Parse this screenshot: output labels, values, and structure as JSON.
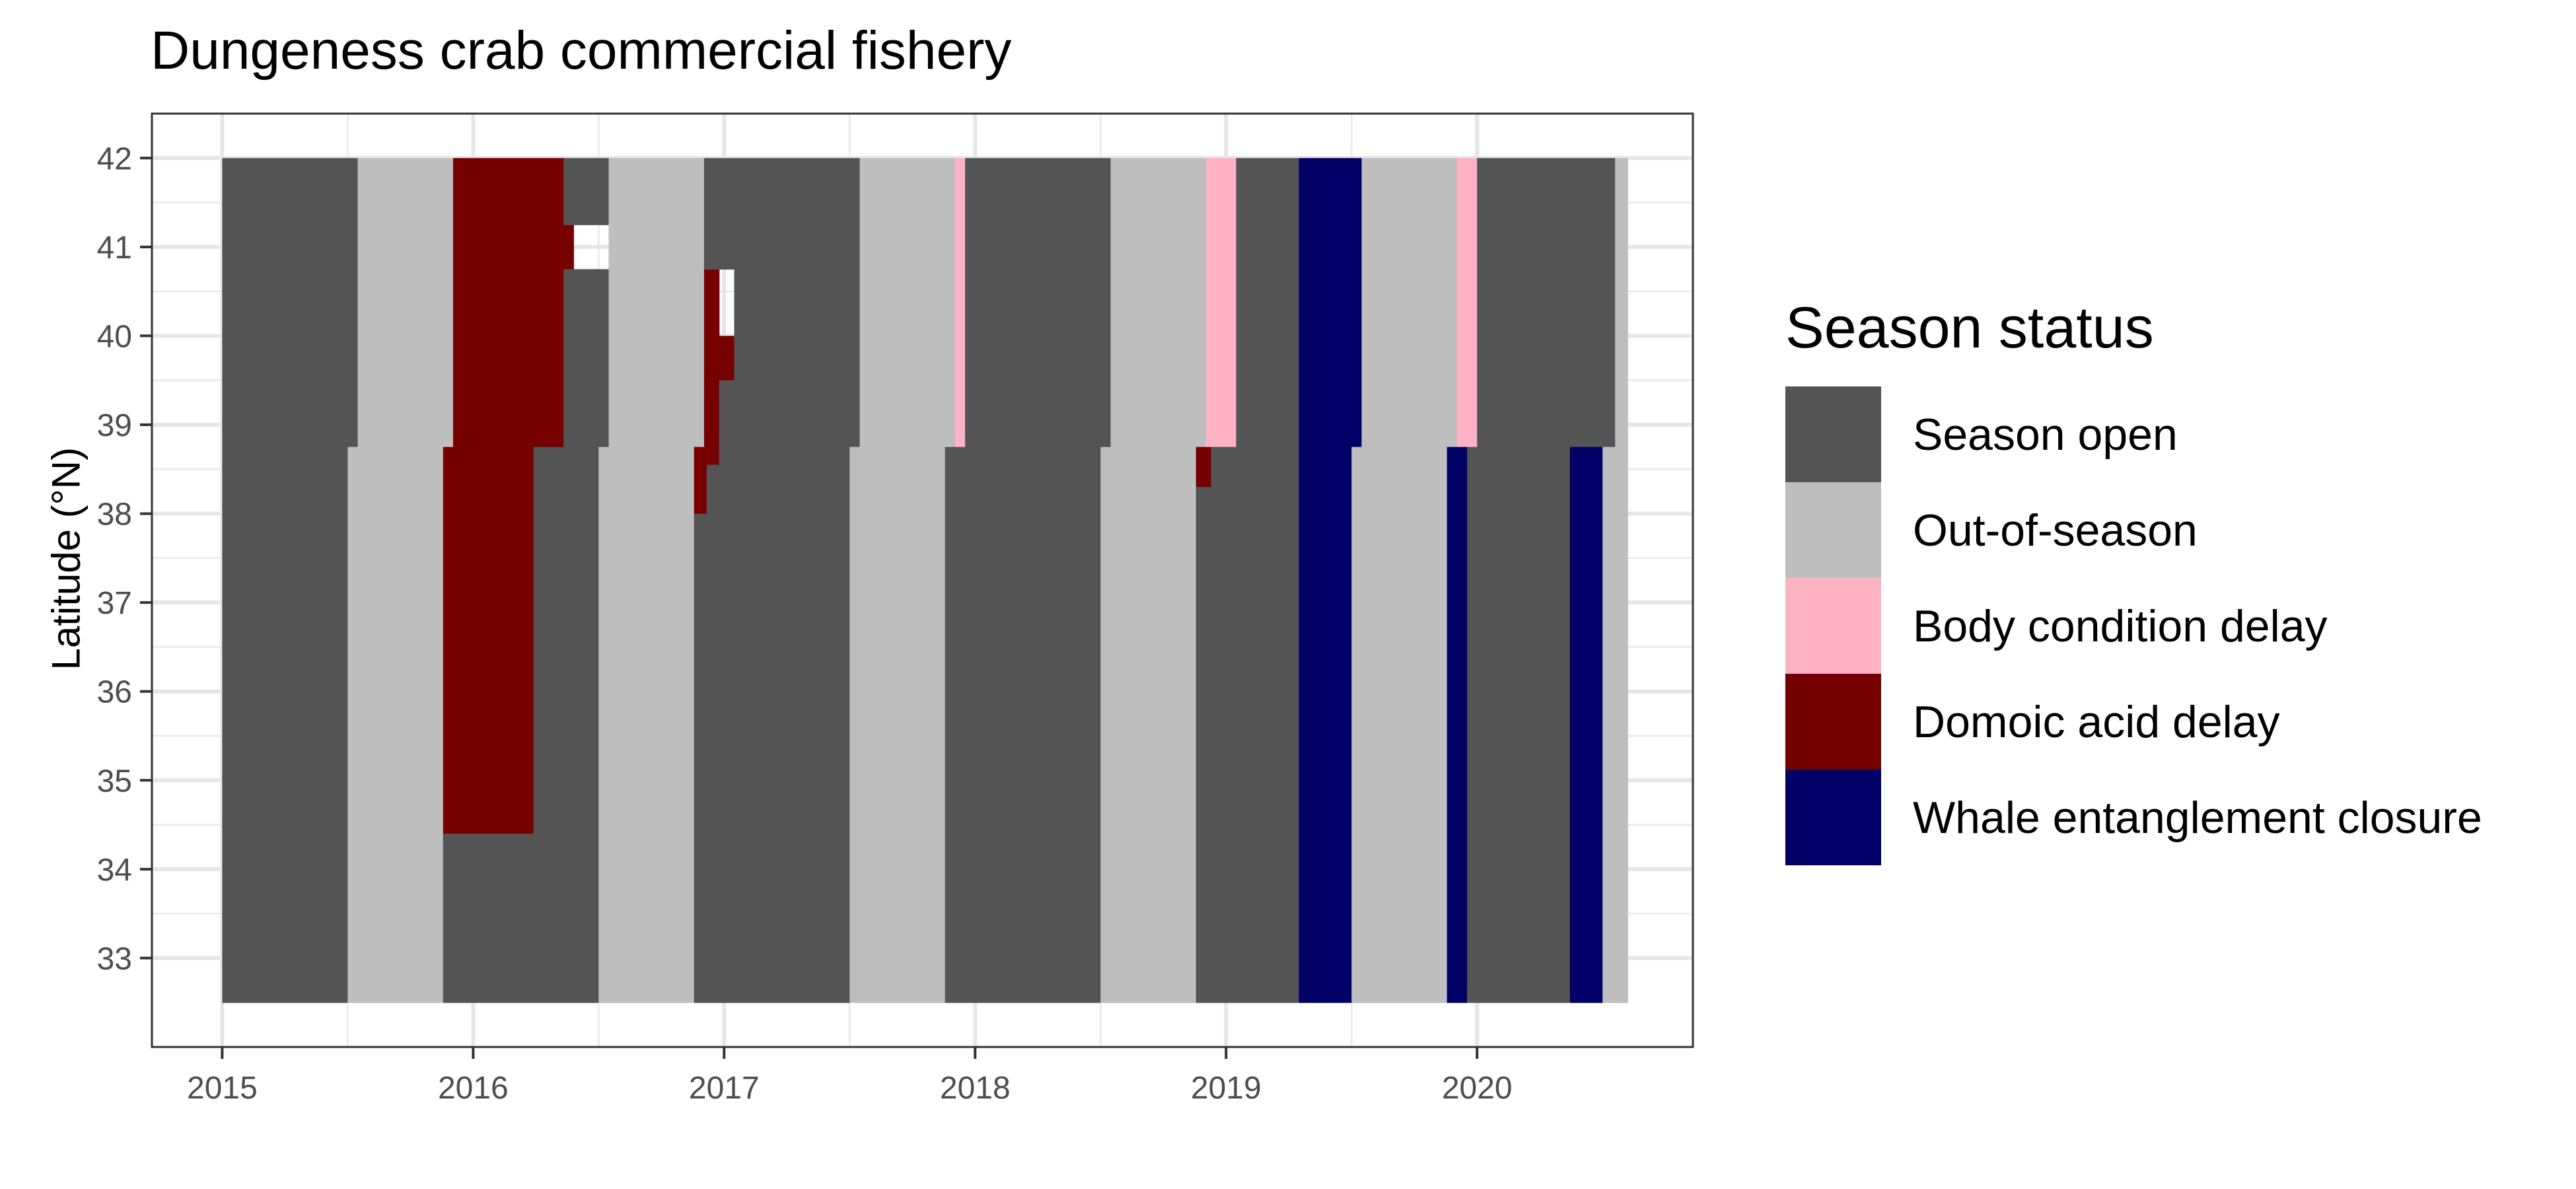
{
  "chart_data": {
    "type": "heatmap",
    "title": "Dungeness crab commercial fishery",
    "xlabel": "",
    "ylabel": "Latitude (°N)",
    "xlim": [
      2014.72,
      2020.86
    ],
    "ylim": [
      32.0,
      42.5
    ],
    "x_ticks": [
      "2015",
      "2016",
      "2017",
      "2018",
      "2019",
      "2020"
    ],
    "y_ticks": [
      "33",
      "34",
      "35",
      "36",
      "37",
      "38",
      "39",
      "40",
      "41",
      "42"
    ],
    "grid": true,
    "legend": {
      "title": "Season status",
      "position": "right",
      "entries": [
        {
          "label": "Season open",
          "color": "#545454"
        },
        {
          "label": "Out-of-season",
          "color": "#bebebe"
        },
        {
          "label": "Body condition delay",
          "color": "#ffb2c4"
        },
        {
          "label": "Domoic acid delay",
          "color": "#760000"
        },
        {
          "label": "Whale entanglement closure",
          "color": "#000066"
        }
      ]
    },
    "tiles": [
      {
        "status": "Season open",
        "x0": 2015.0,
        "x1": 2015.54,
        "y0": 38.75,
        "y1": 42.0
      },
      {
        "status": "Out-of-season",
        "x0": 2015.54,
        "x1": 2015.92,
        "y0": 38.75,
        "y1": 42.0
      },
      {
        "status": "Domoic acid delay",
        "x0": 2015.92,
        "x1": 2016.36,
        "y0": 38.75,
        "y1": 42.0
      },
      {
        "status": "Domoic acid delay",
        "x0": 2016.36,
        "x1": 2016.4,
        "y0": 40.75,
        "y1": 41.25
      },
      {
        "status": "Season open",
        "x0": 2016.36,
        "x1": 2016.54,
        "y0": 38.75,
        "y1": 40.75
      },
      {
        "status": "Season open",
        "x0": 2016.36,
        "x1": 2016.54,
        "y0": 41.25,
        "y1": 42.0
      },
      {
        "status": "Out-of-season",
        "x0": 2016.54,
        "x1": 2016.92,
        "y0": 38.75,
        "y1": 42.0
      },
      {
        "status": "Domoic acid delay",
        "x0": 2016.92,
        "x1": 2016.98,
        "y0": 38.75,
        "y1": 40.75
      },
      {
        "status": "Domoic acid delay",
        "x0": 2016.98,
        "x1": 2017.04,
        "y0": 39.5,
        "y1": 40.0
      },
      {
        "status": "Season open",
        "x0": 2016.92,
        "x1": 2017.54,
        "y0": 40.75,
        "y1": 42.0
      },
      {
        "status": "Season open",
        "x0": 2016.98,
        "x1": 2017.54,
        "y0": 38.75,
        "y1": 39.5
      },
      {
        "status": "Season open",
        "x0": 2017.04,
        "x1": 2017.54,
        "y0": 39.5,
        "y1": 40.75
      },
      {
        "status": "Out-of-season",
        "x0": 2017.54,
        "x1": 2017.92,
        "y0": 38.75,
        "y1": 42.0
      },
      {
        "status": "Body condition delay",
        "x0": 2017.92,
        "x1": 2017.96,
        "y0": 38.75,
        "y1": 42.0
      },
      {
        "status": "Season open",
        "x0": 2017.96,
        "x1": 2018.54,
        "y0": 38.75,
        "y1": 42.0
      },
      {
        "status": "Out-of-season",
        "x0": 2018.54,
        "x1": 2018.92,
        "y0": 38.75,
        "y1": 42.0
      },
      {
        "status": "Body condition delay",
        "x0": 2018.92,
        "x1": 2019.04,
        "y0": 38.75,
        "y1": 42.0
      },
      {
        "status": "Season open",
        "x0": 2019.04,
        "x1": 2019.29,
        "y0": 38.75,
        "y1": 42.0
      },
      {
        "status": "Whale entanglement closure",
        "x0": 2019.29,
        "x1": 2019.54,
        "y0": 38.75,
        "y1": 42.0
      },
      {
        "status": "Out-of-season",
        "x0": 2019.54,
        "x1": 2019.92,
        "y0": 38.75,
        "y1": 42.0
      },
      {
        "status": "Body condition delay",
        "x0": 2019.92,
        "x1": 2020.0,
        "y0": 38.75,
        "y1": 42.0
      },
      {
        "status": "Season open",
        "x0": 2020.0,
        "x1": 2020.55,
        "y0": 38.75,
        "y1": 42.0
      },
      {
        "status": "Out-of-season",
        "x0": 2020.55,
        "x1": 2020.6,
        "y0": 38.75,
        "y1": 42.0
      },
      {
        "status": "Season open",
        "x0": 2015.0,
        "x1": 2015.5,
        "y0": 32.5,
        "y1": 38.75
      },
      {
        "status": "Out-of-season",
        "x0": 2015.5,
        "x1": 2015.88,
        "y0": 32.5,
        "y1": 38.75
      },
      {
        "status": "Domoic acid delay",
        "x0": 2015.88,
        "x1": 2016.24,
        "y0": 34.4,
        "y1": 38.75
      },
      {
        "status": "Season open",
        "x0": 2015.88,
        "x1": 2016.24,
        "y0": 32.5,
        "y1": 34.4
      },
      {
        "status": "Season open",
        "x0": 2016.24,
        "x1": 2016.5,
        "y0": 32.5,
        "y1": 38.75
      },
      {
        "status": "Out-of-season",
        "x0": 2016.5,
        "x1": 2016.88,
        "y0": 32.5,
        "y1": 38.75
      },
      {
        "status": "Domoic acid delay",
        "x0": 2016.88,
        "x1": 2016.98,
        "y0": 38.55,
        "y1": 38.75
      },
      {
        "status": "Domoic acid delay",
        "x0": 2016.88,
        "x1": 2016.93,
        "y0": 38.0,
        "y1": 38.55
      },
      {
        "status": "Season open",
        "x0": 2016.88,
        "x1": 2017.5,
        "y0": 32.5,
        "y1": 38.0
      },
      {
        "status": "Season open",
        "x0": 2016.93,
        "x1": 2017.5,
        "y0": 38.0,
        "y1": 38.55
      },
      {
        "status": "Season open",
        "x0": 2016.98,
        "x1": 2017.5,
        "y0": 38.55,
        "y1": 38.75
      },
      {
        "status": "Out-of-season",
        "x0": 2017.5,
        "x1": 2017.88,
        "y0": 32.5,
        "y1": 38.75
      },
      {
        "status": "Season open",
        "x0": 2017.88,
        "x1": 2018.5,
        "y0": 32.5,
        "y1": 38.75
      },
      {
        "status": "Out-of-season",
        "x0": 2018.5,
        "x1": 2018.88,
        "y0": 32.5,
        "y1": 38.75
      },
      {
        "status": "Domoic acid delay",
        "x0": 2018.88,
        "x1": 2018.94,
        "y0": 38.3,
        "y1": 38.75
      },
      {
        "status": "Season open",
        "x0": 2018.88,
        "x1": 2019.29,
        "y0": 32.5,
        "y1": 38.3
      },
      {
        "status": "Season open",
        "x0": 2018.94,
        "x1": 2019.29,
        "y0": 38.3,
        "y1": 38.75
      },
      {
        "status": "Whale entanglement closure",
        "x0": 2019.29,
        "x1": 2019.5,
        "y0": 32.5,
        "y1": 38.75
      },
      {
        "status": "Out-of-season",
        "x0": 2019.5,
        "x1": 2019.88,
        "y0": 32.5,
        "y1": 38.75
      },
      {
        "status": "Whale entanglement closure",
        "x0": 2019.88,
        "x1": 2019.96,
        "y0": 32.5,
        "y1": 38.75
      },
      {
        "status": "Season open",
        "x0": 2019.96,
        "x1": 2020.37,
        "y0": 32.5,
        "y1": 38.75
      },
      {
        "status": "Whale entanglement closure",
        "x0": 2020.37,
        "x1": 2020.5,
        "y0": 32.5,
        "y1": 38.75
      },
      {
        "status": "Out-of-season",
        "x0": 2020.5,
        "x1": 2020.6,
        "y0": 32.5,
        "y1": 38.75
      }
    ]
  }
}
